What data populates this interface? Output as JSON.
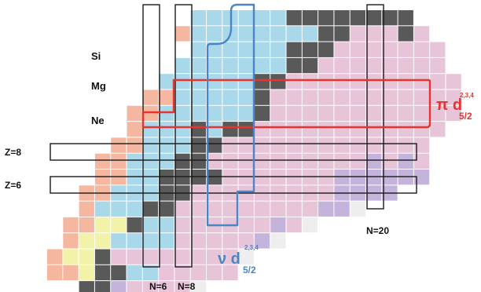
{
  "labels": {
    "element_si": "Si",
    "element_mg": "Mg",
    "element_ne": "Ne",
    "magic_z8": "Z=8",
    "magic_z6": "Z=6",
    "magic_n6": "N=6",
    "magic_n8": "N=8",
    "magic_n20": "N=20",
    "proton_symbol": "π d",
    "proton_orbital_sup": "2,3,4",
    "proton_orbital_sub": "5/2",
    "neutron_symbol": "ν d",
    "neutron_orbital_sup": "2,3,4",
    "neutron_orbital_sub": "5/2"
  },
  "colors": {
    "pink": "#e8c4d8",
    "light_blue": "#a8d8ea",
    "salmon": "#f5b7a0",
    "yellow": "#f2f2a8",
    "lavender": "#c4b4dc",
    "dark_gray": "#595959",
    "light_gray": "#eeeeee",
    "proton_box": "#e8332f",
    "neutron_box": "#4a86c5",
    "magic_box": "#1a1a1a"
  }
}
